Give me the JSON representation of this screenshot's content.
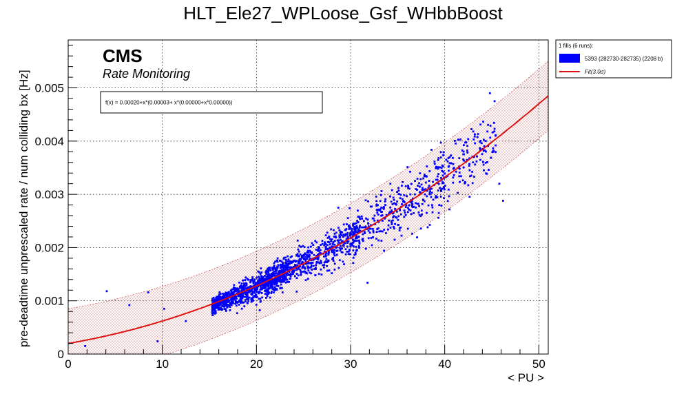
{
  "title": "HLT_Ele27_WPLoose_Gsf_WHbbBoost",
  "header": {
    "cms": "CMS",
    "subtitle": "Rate Monitoring"
  },
  "fit_box": {
    "formula": "f(x) = 0.00020+x*(0.00003+ x*(0.00000+x*0.00000))"
  },
  "legend": {
    "header": "1 fills (6 runs):",
    "data_label": "5393 (282730-282735) (2208 b)",
    "fit_label": "Fit(3.0σ)"
  },
  "colors": {
    "data": "#0000ff",
    "fit": "#dd1111",
    "band": "#bb1111"
  },
  "chart_data": {
    "type": "scatter",
    "title": "HLT_Ele27_WPLoose_Gsf_WHbbBoost",
    "xlabel": "< PU >",
    "ylabel": "pre-deadtime unprescaled rate / num colliding bx [Hz]",
    "xlim": [
      0,
      51
    ],
    "ylim": [
      0,
      0.0059
    ],
    "x_ticks": [
      "0",
      "10",
      "20",
      "30",
      "40",
      "50"
    ],
    "y_ticks": [
      "0",
      "0.001",
      "0.002",
      "0.003",
      "0.004",
      "0.005"
    ],
    "grid": true,
    "legend_position": "right, outside plot",
    "fit": {
      "a": 0.0002,
      "b": 3e-05,
      "c": 1.2e-06,
      "sigma_band": 3.0,
      "band_halfwidth": 0.00065
    },
    "series": [
      {
        "name": "5393 (282730-282735) (2208 b)",
        "trend_points": [
          {
            "x": 15,
            "y": 0.00088
          },
          {
            "x": 20,
            "y": 0.00126
          },
          {
            "x": 25,
            "y": 0.0017
          },
          {
            "x": 30,
            "y": 0.00218
          },
          {
            "x": 35,
            "y": 0.00269
          },
          {
            "x": 40,
            "y": 0.00332
          },
          {
            "x": 45,
            "y": 0.004
          }
        ],
        "outliers": [
          {
            "x": 1.8,
            "y": 0.00015
          },
          {
            "x": 4.1,
            "y": 0.00118
          },
          {
            "x": 6.5,
            "y": 0.00092
          },
          {
            "x": 8.5,
            "y": 0.00116
          },
          {
            "x": 9.5,
            "y": 0.00024
          },
          {
            "x": 10.2,
            "y": 0.00085
          },
          {
            "x": 28.7,
            "y": 0.00275
          },
          {
            "x": 31.8,
            "y": 0.00134
          },
          {
            "x": 44.8,
            "y": 0.0049
          },
          {
            "x": 45.3,
            "y": 0.00475
          },
          {
            "x": 46.2,
            "y": 0.00288
          },
          {
            "x": 45.8,
            "y": 0.0032
          },
          {
            "x": 12.5,
            "y": 0.00062
          }
        ]
      }
    ]
  }
}
